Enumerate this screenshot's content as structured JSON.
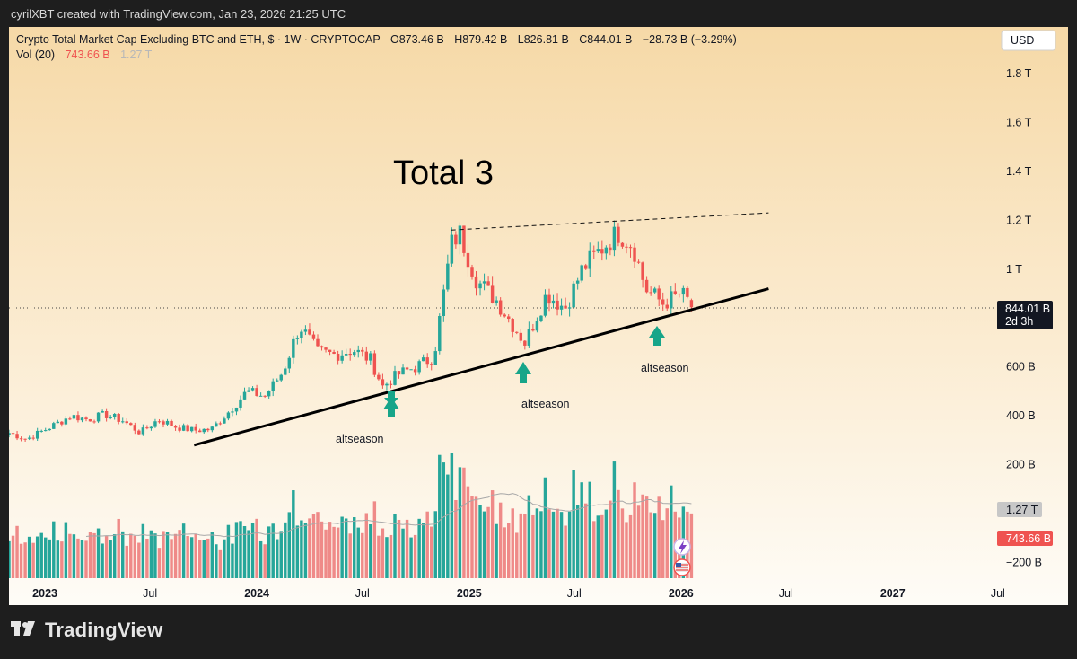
{
  "header": {
    "attribution": "cyrilXBT created with TradingView.com, Jan 23, 2026 21:25 UTC"
  },
  "chart_info": {
    "title_line": "Crypto Total Market Cap Excluding BTC and ETH, $ · 1W · CRYPTOCAP",
    "o_label": "O",
    "o_value": "873.46 B",
    "h_label": "H",
    "h_value": "879.42 B",
    "l_label": "L",
    "l_value": "826.81 B",
    "c_label": "C",
    "c_value": "844.01 B",
    "change": "−28.73 B (−3.29%)",
    "vol_label": "Vol (20)",
    "vol_value": "743.66 B",
    "vol_ma_value": "1.27 T",
    "currency_button": "USD"
  },
  "price_tag": {
    "price": "844.01 B",
    "countdown": "2d 3h"
  },
  "volume_tags": {
    "ma": "1.27 T",
    "vol": "743.66 B"
  },
  "annotations": {
    "title": "Total 3",
    "labels": [
      "altseason",
      "altseason",
      "altseason"
    ]
  },
  "footer": {
    "brand": "TradingView"
  },
  "colors": {
    "up": "#26a69a",
    "down": "#ef5350",
    "vol_up": "#26a69a",
    "vol_down": "#ef8a88",
    "arrow": "#17a589",
    "bg_top": "#f5d9a8",
    "bg_bottom": "#fdfbf5"
  },
  "chart_data": {
    "type": "candlestick",
    "title": "Crypto Total Market Cap Excluding BTC and ETH",
    "interval": "1W",
    "y_axis": {
      "ticks": [
        "1.8 T",
        "1.6 T",
        "1.4 T",
        "1.2 T",
        "1 T",
        "600 B",
        "400 B",
        "200 B",
        "−200 B"
      ],
      "ylim": [
        -250,
        1950
      ],
      "unit": "B USD"
    },
    "x_axis": {
      "ticks": [
        "2023",
        "Jul",
        "2024",
        "Jul",
        "2025",
        "Jul",
        "2026",
        "Jul",
        "2027",
        "Jul"
      ],
      "range": [
        "2022-10-31",
        "2027-08-01"
      ]
    },
    "last": {
      "open": 873.46,
      "high": 879.42,
      "low": 826.81,
      "close": 844.01,
      "change": -28.73,
      "change_pct": -3.29
    },
    "series": [
      {
        "name": "price",
        "type": "candlestick",
        "points": [
          [
            "2022-10-31",
            330
          ],
          [
            "2022-12-01",
            305
          ],
          [
            "2023-01-15",
            360
          ],
          [
            "2023-02-15",
            400
          ],
          [
            "2023-03-15",
            385
          ],
          [
            "2023-04-15",
            405
          ],
          [
            "2023-05-15",
            380
          ],
          [
            "2023-06-15",
            330
          ],
          [
            "2023-07-15",
            385
          ],
          [
            "2023-08-15",
            355
          ],
          [
            "2023-09-15",
            340
          ],
          [
            "2023-10-15",
            345
          ],
          [
            "2023-11-15",
            420
          ],
          [
            "2023-12-15",
            500
          ],
          [
            "2024-01-15",
            480
          ],
          [
            "2024-02-15",
            580
          ],
          [
            "2024-03-15",
            770
          ],
          [
            "2024-04-15",
            660
          ],
          [
            "2024-05-15",
            650
          ],
          [
            "2024-06-15",
            670
          ],
          [
            "2024-07-15",
            630
          ],
          [
            "2024-08-05",
            520
          ],
          [
            "2024-09-01",
            570
          ],
          [
            "2024-10-01",
            600
          ],
          [
            "2024-11-01",
            640
          ],
          [
            "2024-12-01",
            1100
          ],
          [
            "2024-12-15",
            1150
          ],
          [
            "2025-01-15",
            950
          ],
          [
            "2025-02-15",
            880
          ],
          [
            "2025-03-15",
            780
          ],
          [
            "2025-04-07",
            700
          ],
          [
            "2025-05-15",
            900
          ],
          [
            "2025-06-15",
            840
          ],
          [
            "2025-07-15",
            1000
          ],
          [
            "2025-08-15",
            1080
          ],
          [
            "2025-09-15",
            1150
          ],
          [
            "2025-10-10",
            1100
          ],
          [
            "2025-11-01",
            920
          ],
          [
            "2025-12-01",
            860
          ],
          [
            "2026-01-01",
            900
          ],
          [
            "2026-01-23",
            844
          ]
        ]
      },
      {
        "name": "Vol (20)",
        "type": "bar",
        "last": 743.66,
        "ma_last": 1270
      }
    ],
    "trendlines": [
      {
        "style": "solid",
        "from": [
          "2023-09-15",
          280
        ],
        "to": [
          "2026-06-01",
          920
        ]
      },
      {
        "style": "dashed",
        "from": [
          "2024-12-01",
          1160
        ],
        "to": [
          "2026-06-01",
          1230
        ]
      }
    ]
  }
}
